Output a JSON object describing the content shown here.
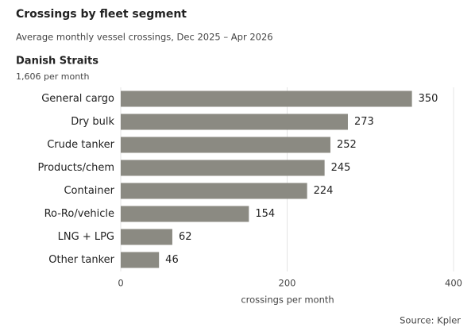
{
  "chart_data": {
    "type": "barh",
    "title": "Crossings by fleet segment",
    "subtitle": "Average monthly vessel crossings, Dec 2025 – Apr 2026",
    "panel_title": "Danish Straits",
    "panel_subtitle": "1,606 per month",
    "categories": [
      "General cargo",
      "Dry bulk",
      "Crude tanker",
      "Products/chem",
      "Container",
      "Ro-Ro/vehicle",
      "LNG + LPG",
      "Other tanker"
    ],
    "values": [
      350,
      273,
      252,
      245,
      224,
      154,
      62,
      46
    ],
    "color": "#8b8a82",
    "xlim": [
      0,
      400
    ],
    "xticks": [
      0,
      200,
      400
    ],
    "grid": true,
    "xlabel": "crossings per month",
    "source": "Source: Kpler"
  }
}
